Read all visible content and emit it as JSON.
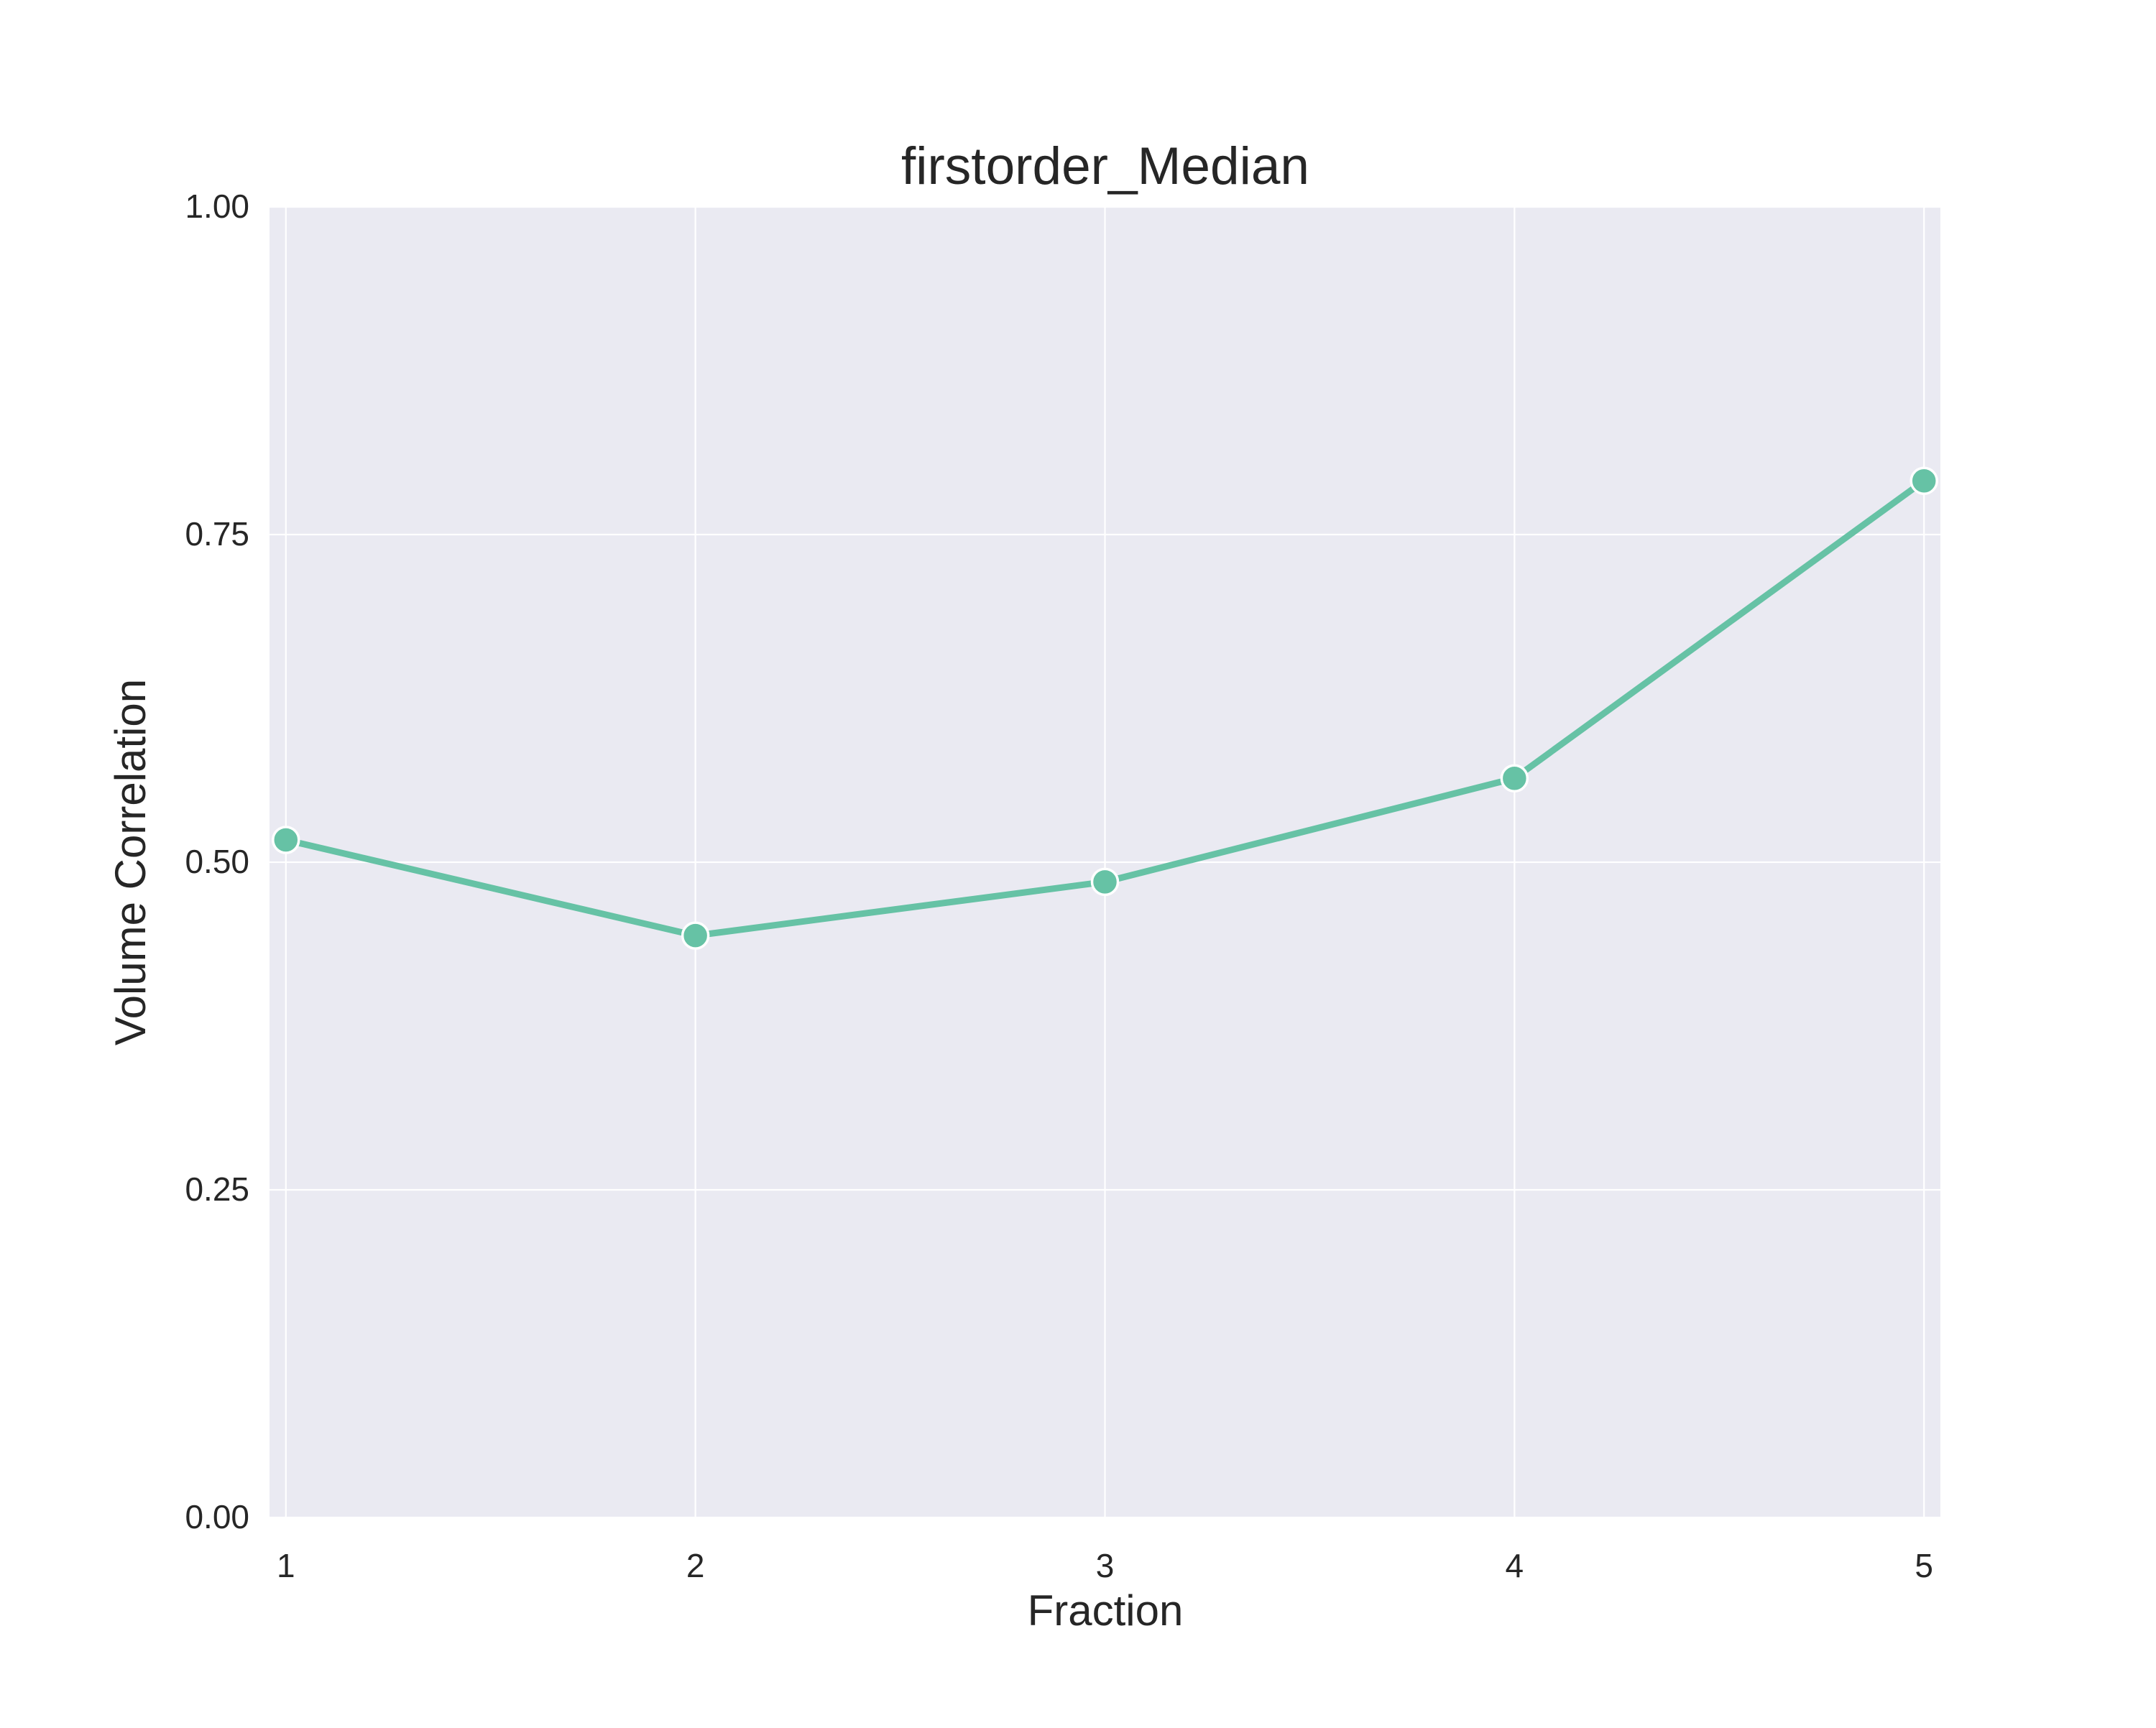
{
  "chart_data": {
    "type": "line",
    "title": "firstorder_Median",
    "xlabel": "Fraction",
    "ylabel": "Volume Correlation",
    "x": [
      1,
      2,
      3,
      4,
      5
    ],
    "x_tick_labels": [
      "1",
      "2",
      "3",
      "4",
      "5"
    ],
    "y_ticks": [
      0.0,
      0.25,
      0.5,
      0.75,
      1.0
    ],
    "y_tick_labels": [
      "0.00",
      "0.25",
      "0.50",
      "0.75",
      "1.00"
    ],
    "xlim": [
      0.96,
      5.04
    ],
    "ylim": [
      0.0,
      1.0
    ],
    "grid": true,
    "series": [
      {
        "values": [
          0.517,
          0.444,
          0.485,
          0.564,
          0.791
        ],
        "color": "#66c2a5",
        "marker": "circle"
      }
    ]
  }
}
